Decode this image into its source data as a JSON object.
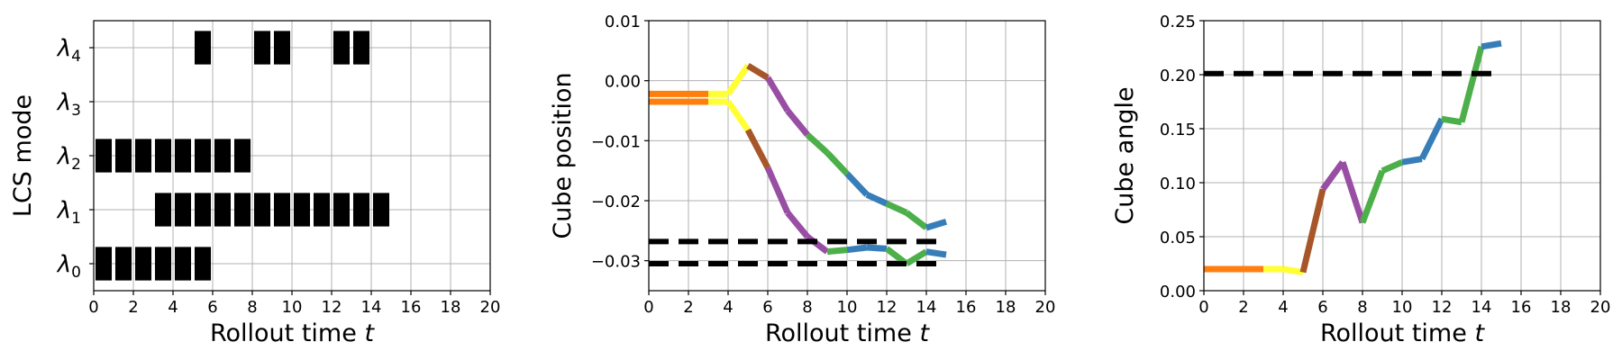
{
  "colors": {
    "orange": "#ff7f0e",
    "yellow": "#ffff33",
    "brown": "#a65628",
    "purple": "#984ea3",
    "green": "#4daf4a",
    "blue": "#377eb8",
    "black": "#000000",
    "grid": "#b0b0b0"
  },
  "chart_data": [
    {
      "type": "timeline",
      "xlabel": "Rollout time",
      "xlabel_var": "t",
      "ylabel": "LCS mode",
      "xlim": [
        0,
        20
      ],
      "x_ticks": [
        "0",
        "2",
        "4",
        "6",
        "8",
        "10",
        "12",
        "14",
        "16",
        "18",
        "20"
      ],
      "y_tick_labels": [
        {
          "base": "λ",
          "sub": "0"
        },
        {
          "base": "λ",
          "sub": "1"
        },
        {
          "base": "λ",
          "sub": "2"
        },
        {
          "base": "λ",
          "sub": "3"
        },
        {
          "base": "λ",
          "sub": "4"
        }
      ],
      "grid": true,
      "active_modes": [
        {
          "mode": 0,
          "t": [
            0,
            1,
            2,
            3,
            4,
            5
          ]
        },
        {
          "mode": 1,
          "t": [
            3,
            4,
            5,
            6,
            7,
            8,
            9,
            10,
            11,
            12,
            13,
            14
          ]
        },
        {
          "mode": 2,
          "t": [
            0,
            1,
            2,
            3,
            4,
            5,
            6,
            7
          ]
        },
        {
          "mode": 3,
          "t": []
        },
        {
          "mode": 4,
          "t": [
            5,
            8,
            9,
            12,
            13
          ]
        }
      ]
    },
    {
      "type": "line",
      "xlabel": "Rollout time",
      "xlabel_var": "t",
      "ylabel": "Cube position",
      "xlim": [
        0,
        20
      ],
      "ylim": [
        -0.035,
        0.01
      ],
      "x_ticks": [
        "0",
        "2",
        "4",
        "6",
        "8",
        "10",
        "12",
        "14",
        "16",
        "18",
        "20"
      ],
      "y_ticks": [
        {
          "v": 0.01,
          "label": "0.01"
        },
        {
          "v": 0.0,
          "label": "0.00"
        },
        {
          "v": -0.01,
          "label": "−0.01"
        },
        {
          "v": -0.02,
          "label": "−0.02"
        },
        {
          "v": -0.03,
          "label": "−0.03"
        }
      ],
      "grid": true,
      "series": [
        {
          "x": [
            0,
            1,
            2,
            3,
            4,
            5,
            6,
            7,
            8,
            9,
            10,
            11,
            12,
            13,
            14,
            15
          ],
          "y": [
            -0.0022,
            -0.0022,
            -0.0022,
            -0.0022,
            -0.0022,
            0.0025,
            0.0005,
            -0.005,
            -0.009,
            -0.012,
            -0.0155,
            -0.019,
            -0.0205,
            -0.022,
            -0.0245,
            -0.0235
          ],
          "colors": [
            "orange",
            "orange",
            "orange",
            "yellow",
            "yellow",
            "brown",
            "purple",
            "purple",
            "green",
            "green",
            "blue",
            "blue",
            "green",
            "green",
            "blue"
          ]
        },
        {
          "x": [
            0,
            1,
            2,
            3,
            4,
            5,
            6,
            7,
            8,
            9,
            10,
            11,
            12,
            13,
            14,
            15
          ],
          "y": [
            -0.0035,
            -0.0035,
            -0.0035,
            -0.0035,
            -0.0035,
            -0.0082,
            -0.0145,
            -0.022,
            -0.026,
            -0.0285,
            -0.0282,
            -0.0278,
            -0.028,
            -0.0305,
            -0.0285,
            -0.029
          ],
          "colors": [
            "orange",
            "orange",
            "orange",
            "yellow",
            "yellow",
            "brown",
            "purple",
            "purple",
            "purple",
            "green",
            "blue",
            "blue",
            "green",
            "green",
            "blue"
          ]
        }
      ],
      "reference_lines": [
        {
          "y": -0.0268,
          "x": [
            0,
            14.8
          ]
        },
        {
          "y": -0.0305,
          "x": [
            0,
            14.8
          ]
        }
      ]
    },
    {
      "type": "line",
      "xlabel": "Rollout time",
      "xlabel_var": "t",
      "ylabel": "Cube angle",
      "xlim": [
        0,
        20
      ],
      "ylim": [
        0,
        0.25
      ],
      "x_ticks": [
        "0",
        "2",
        "4",
        "6",
        "8",
        "10",
        "12",
        "14",
        "16",
        "18",
        "20"
      ],
      "y_ticks": [
        {
          "v": 0.0,
          "label": "0.00"
        },
        {
          "v": 0.05,
          "label": "0.05"
        },
        {
          "v": 0.1,
          "label": "0.10"
        },
        {
          "v": 0.15,
          "label": "0.15"
        },
        {
          "v": 0.2,
          "label": "0.20"
        },
        {
          "v": 0.25,
          "label": "0.25"
        }
      ],
      "grid": true,
      "series": [
        {
          "x": [
            0,
            1,
            2,
            3,
            4,
            5,
            6,
            7,
            8,
            9,
            10,
            11,
            12,
            13,
            14,
            15
          ],
          "y": [
            0.02,
            0.02,
            0.02,
            0.02,
            0.02,
            0.017,
            0.094,
            0.119,
            0.063,
            0.111,
            0.119,
            0.122,
            0.159,
            0.156,
            0.226,
            0.229
          ],
          "colors": [
            "orange",
            "orange",
            "orange",
            "yellow",
            "yellow",
            "brown",
            "purple",
            "purple",
            "green",
            "green",
            "blue",
            "blue",
            "green",
            "green",
            "blue"
          ]
        }
      ],
      "reference_lines": [
        {
          "y": 0.201,
          "x": [
            0,
            14.6
          ]
        }
      ]
    }
  ]
}
